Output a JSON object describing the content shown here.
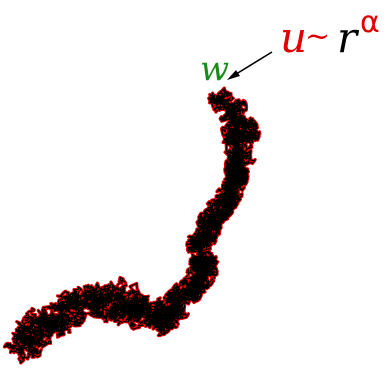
{
  "labels": {
    "w": "w",
    "u": "u",
    "sim": "~",
    "r": "r",
    "alpha": "α"
  },
  "colors": {
    "w": "#1a8a1a",
    "u": "#e00000",
    "r": "#000000",
    "alpha": "#e00000",
    "walk": "#000000",
    "boundary": "#e00000",
    "arrow": "#000000"
  }
}
